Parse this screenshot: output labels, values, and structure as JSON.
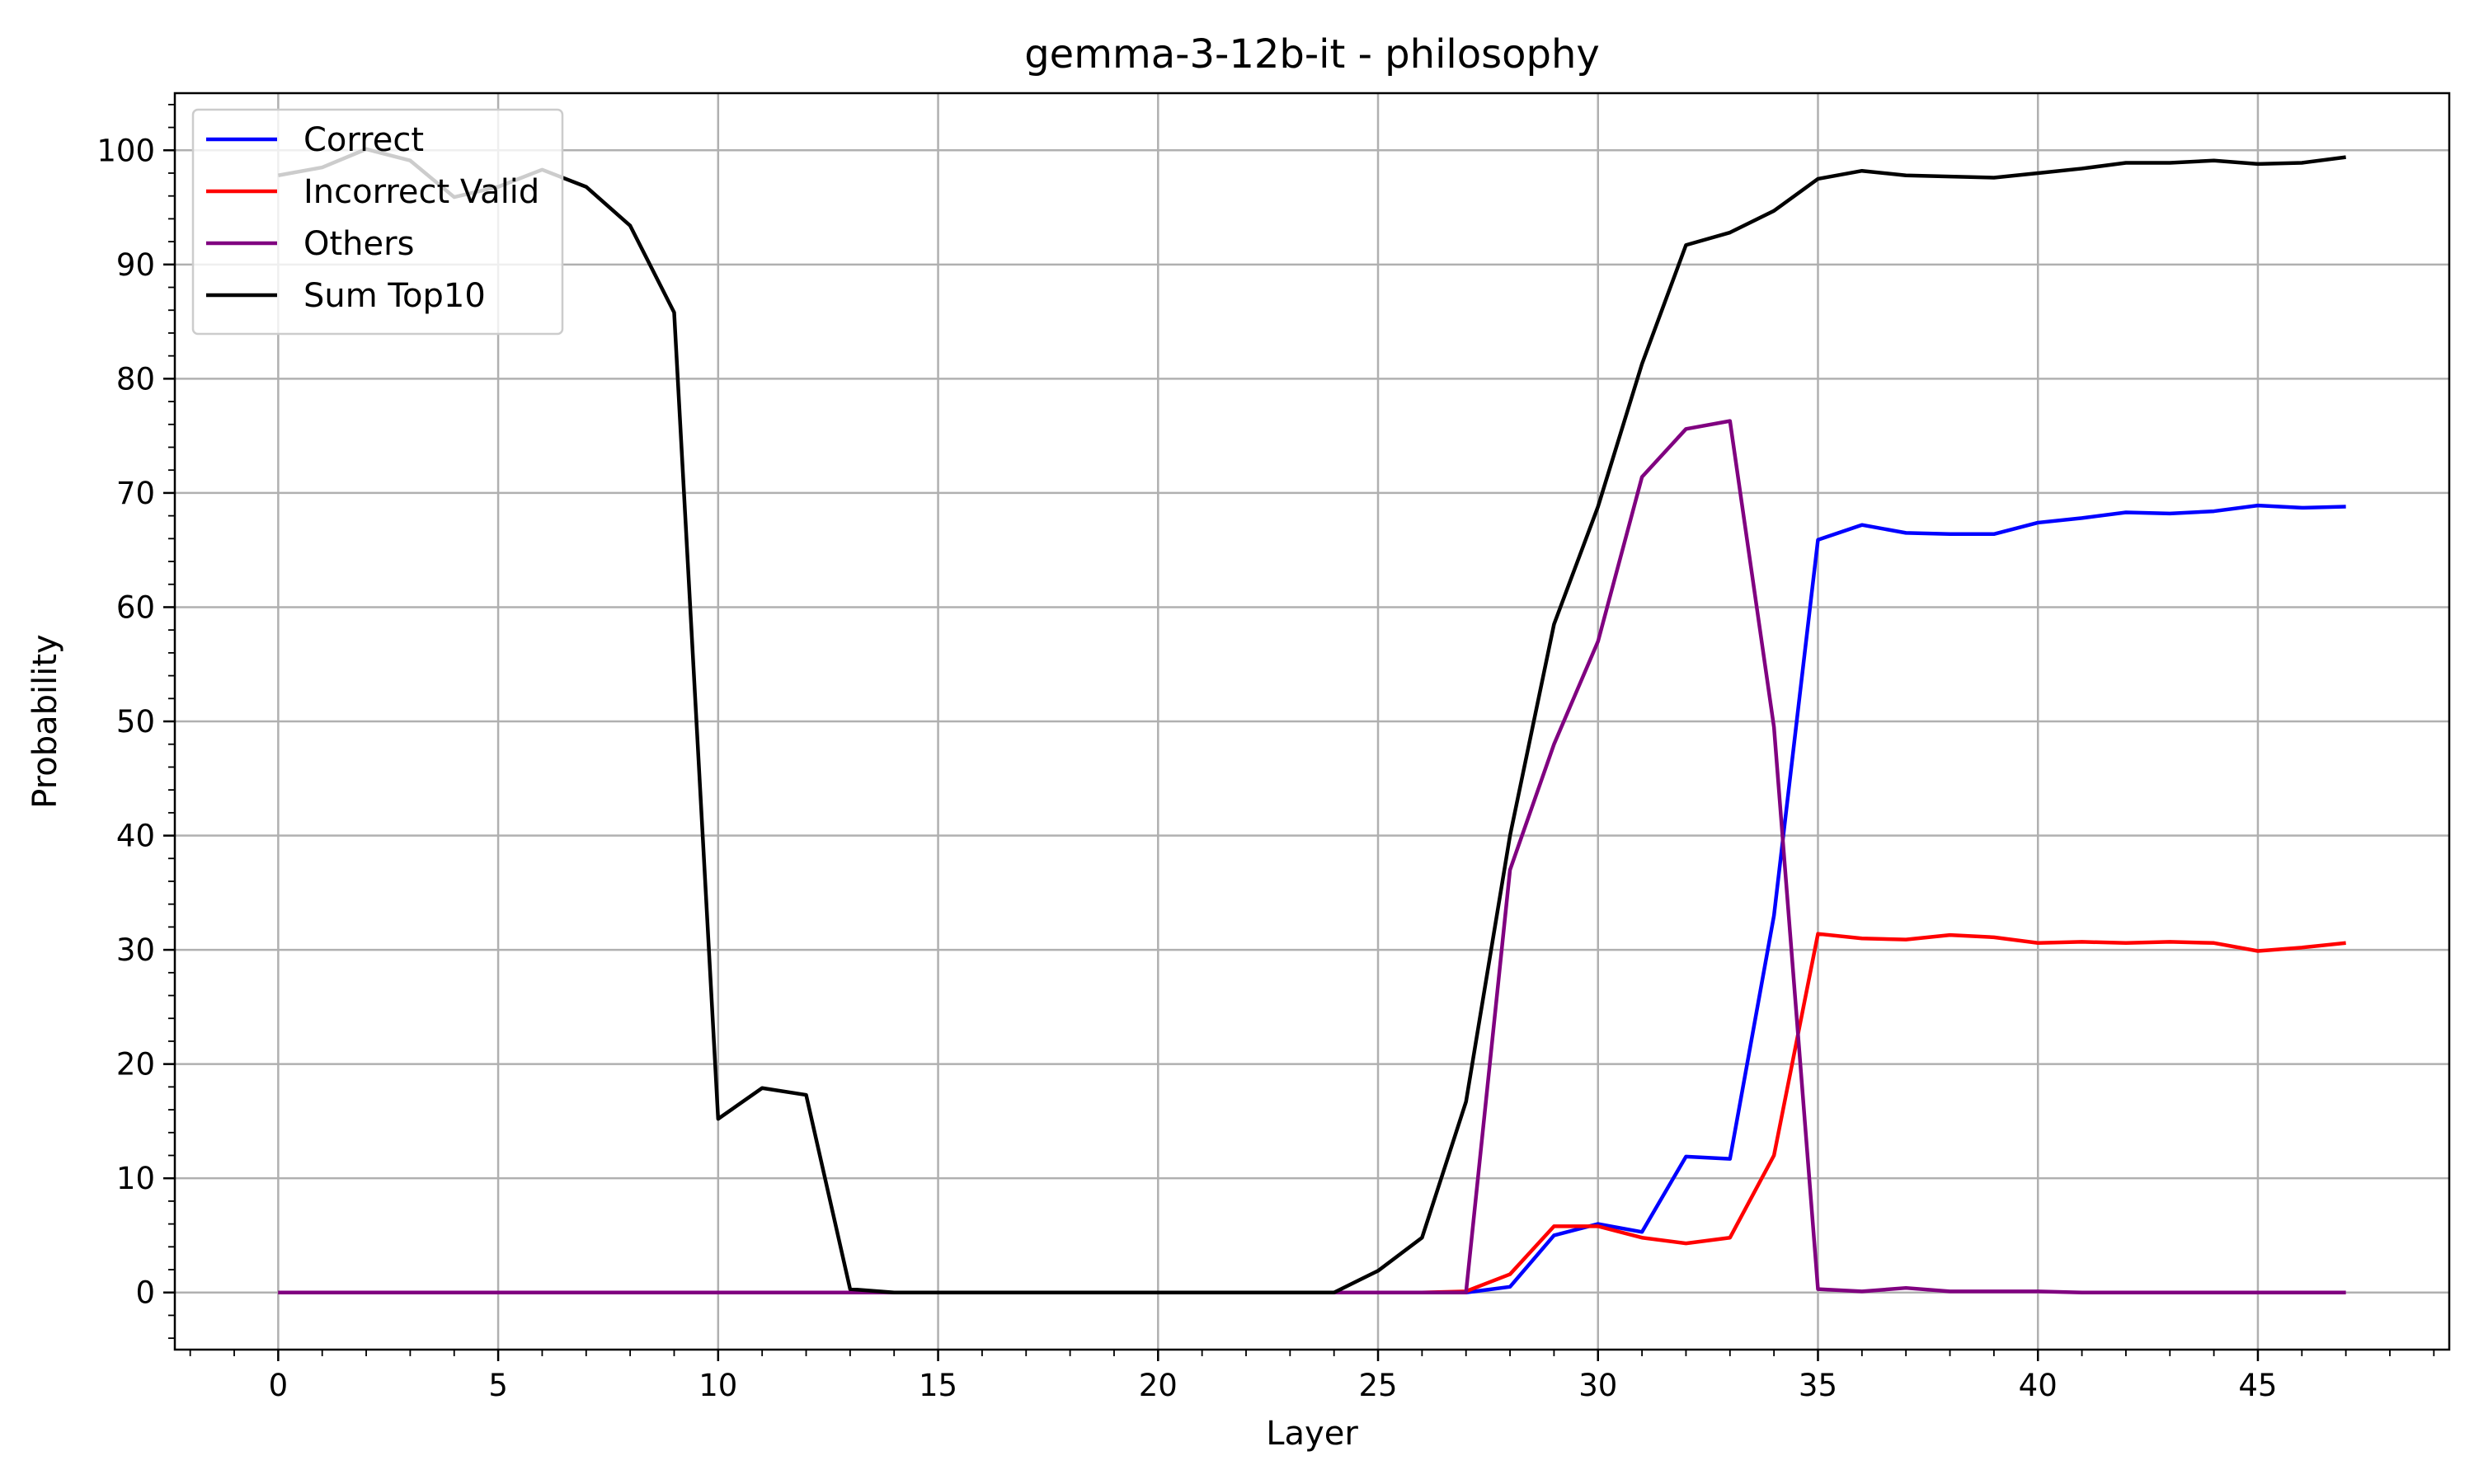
{
  "chart_data": {
    "type": "line",
    "title": "gemma-3-12b-it - philosophy",
    "xlabel": "Layer",
    "ylabel": "Probability",
    "xlim": [
      -2.35,
      49.35
    ],
    "ylim": [
      -5,
      105
    ],
    "x_ticks": [
      0,
      5,
      10,
      15,
      20,
      25,
      30,
      35,
      40,
      45
    ],
    "y_ticks": [
      0,
      10,
      20,
      30,
      40,
      50,
      60,
      70,
      80,
      90,
      100
    ],
    "grid": true,
    "legend_position": "upper left",
    "x": [
      0,
      1,
      2,
      3,
      4,
      5,
      6,
      7,
      8,
      9,
      10,
      11,
      12,
      13,
      14,
      15,
      16,
      17,
      18,
      19,
      20,
      21,
      22,
      23,
      24,
      25,
      26,
      27,
      28,
      29,
      30,
      31,
      32,
      33,
      34,
      35,
      36,
      37,
      38,
      39,
      40,
      41,
      42,
      43,
      44,
      45,
      46,
      47
    ],
    "series": [
      {
        "name": "Correct",
        "color": "#0000ff",
        "values": [
          0,
          0,
          0,
          0,
          0,
          0,
          0,
          0,
          0,
          0,
          0,
          0,
          0,
          0,
          0,
          0,
          0,
          0,
          0,
          0,
          0,
          0,
          0,
          0,
          0,
          0,
          0,
          0,
          0.5,
          5.0,
          6.0,
          5.3,
          11.9,
          11.7,
          33.0,
          65.9,
          67.2,
          66.5,
          66.4,
          66.4,
          67.4,
          67.8,
          68.3,
          68.2,
          68.4,
          68.9,
          68.7,
          68.8
        ]
      },
      {
        "name": "Incorrect Valid",
        "color": "#ff0000",
        "values": [
          0,
          0,
          0,
          0,
          0,
          0,
          0,
          0,
          0,
          0,
          0,
          0,
          0,
          0,
          0,
          0,
          0,
          0,
          0,
          0,
          0,
          0,
          0,
          0,
          0,
          0,
          0,
          0.1,
          1.6,
          5.8,
          5.8,
          4.8,
          4.3,
          4.8,
          12.0,
          31.4,
          31.0,
          30.9,
          31.3,
          31.1,
          30.6,
          30.7,
          30.6,
          30.7,
          30.6,
          29.9,
          30.2,
          30.6
        ]
      },
      {
        "name": "Others",
        "color": "#800080",
        "values": [
          0,
          0,
          0,
          0,
          0,
          0,
          0,
          0,
          0,
          0,
          0,
          0,
          0,
          0,
          0,
          0,
          0,
          0,
          0,
          0,
          0,
          0,
          0,
          0,
          0,
          0,
          0,
          0,
          37.0,
          48.0,
          57.0,
          71.4,
          75.6,
          76.3,
          49.5,
          0.3,
          0.1,
          0.4,
          0.1,
          0.1,
          0.1,
          0,
          0,
          0,
          0,
          0,
          0,
          0
        ]
      },
      {
        "name": "Sum Top10",
        "color": "#000000",
        "values": [
          97.8,
          98.5,
          100.1,
          99.1,
          95.9,
          96.8,
          98.3,
          96.8,
          93.4,
          85.8,
          15.2,
          17.9,
          17.3,
          0.3,
          0,
          0,
          0,
          0,
          0,
          0,
          0,
          0,
          0,
          0,
          0,
          1.9,
          4.8,
          16.7,
          40.0,
          58.5,
          68.8,
          81.3,
          91.7,
          92.8,
          94.7,
          97.5,
          98.2,
          97.8,
          97.7,
          97.6,
          98.0,
          98.4,
          98.9,
          98.9,
          99.1,
          98.8,
          98.9,
          99.4
        ]
      }
    ]
  }
}
